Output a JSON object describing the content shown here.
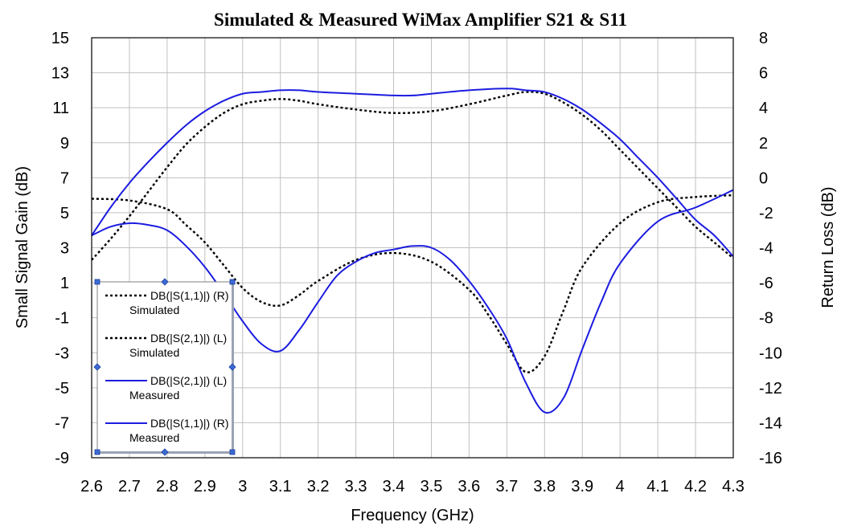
{
  "chart_data": {
    "type": "line",
    "title": "Simulated & Measured WiMax Amplifier S21 & S11",
    "xlabel": "Frequency (GHz)",
    "ylabel_left": "Small Signal Gain (dB)",
    "ylabel_right": "Return Loss (dB)",
    "xlim": [
      2.6,
      4.3
    ],
    "ylim_left": [
      -9,
      15
    ],
    "ylim_right": [
      -16,
      8
    ],
    "x_ticks": [
      "2.6",
      "2.7",
      "2.8",
      "2.9",
      "3",
      "3.1",
      "3.2",
      "3.3",
      "3.4",
      "3.5",
      "3.6",
      "3.7",
      "3.8",
      "3.9",
      "4",
      "4.1",
      "4.2",
      "4.3"
    ],
    "y_left_ticks": [
      "15",
      "13",
      "11",
      "9",
      "7",
      "5",
      "3",
      "1",
      "-1",
      "-3",
      "-5",
      "-7",
      "-9"
    ],
    "y_right_ticks": [
      "8",
      "6",
      "4",
      "2",
      "0",
      "-2",
      "-4",
      "-6",
      "-8",
      "-10",
      "-12",
      "-14",
      "-16"
    ],
    "grid": true,
    "legend_position": "bottom-left",
    "series": [
      {
        "name": "DB(|S(1,1)|) (R)",
        "sublabel": "Simulated",
        "axis": "right",
        "style": "dotted",
        "color": "#000000",
        "x": [
          2.6,
          2.7,
          2.8,
          2.85,
          2.9,
          2.95,
          3.0,
          3.05,
          3.1,
          3.15,
          3.2,
          3.3,
          3.4,
          3.5,
          3.6,
          3.65,
          3.7,
          3.75,
          3.8,
          3.85,
          3.9,
          4.0,
          4.1,
          4.2,
          4.3
        ],
        "y": [
          -1.2,
          -1.3,
          -1.8,
          -2.7,
          -3.7,
          -5.0,
          -6.3,
          -7.1,
          -7.3,
          -6.7,
          -5.9,
          -4.7,
          -4.3,
          -4.8,
          -6.4,
          -7.8,
          -9.5,
          -11.1,
          -10.2,
          -7.6,
          -5.1,
          -2.6,
          -1.4,
          -1.1,
          -1.0
        ]
      },
      {
        "name": "DB(|S(2,1)|) (L)",
        "sublabel": "Simulated",
        "axis": "left",
        "style": "dotted",
        "color": "#000000",
        "x": [
          2.6,
          2.65,
          2.7,
          2.75,
          2.8,
          2.85,
          2.9,
          2.95,
          3.0,
          3.05,
          3.1,
          3.15,
          3.2,
          3.3,
          3.4,
          3.5,
          3.6,
          3.7,
          3.75,
          3.8,
          3.85,
          3.9,
          3.95,
          4.0,
          4.05,
          4.1,
          4.15,
          4.2,
          4.25,
          4.3
        ],
        "y": [
          2.3,
          3.5,
          4.8,
          6.2,
          7.6,
          8.9,
          9.9,
          10.7,
          11.2,
          11.4,
          11.5,
          11.4,
          11.2,
          10.9,
          10.7,
          10.8,
          11.2,
          11.7,
          11.9,
          11.8,
          11.3,
          10.6,
          9.7,
          8.6,
          7.5,
          6.4,
          5.3,
          4.2,
          3.3,
          2.4
        ]
      },
      {
        "name": "DB(|S(2,1)|) (L)",
        "sublabel": "Measured",
        "axis": "left",
        "style": "solid",
        "color": "#1c1ce0",
        "x": [
          2.6,
          2.65,
          2.7,
          2.75,
          2.8,
          2.85,
          2.9,
          2.95,
          3.0,
          3.05,
          3.1,
          3.15,
          3.2,
          3.3,
          3.4,
          3.45,
          3.5,
          3.6,
          3.7,
          3.75,
          3.8,
          3.85,
          3.9,
          3.95,
          4.0,
          4.05,
          4.1,
          4.15,
          4.2,
          4.25,
          4.3
        ],
        "y": [
          3.7,
          5.3,
          6.7,
          7.9,
          9.0,
          10.0,
          10.8,
          11.4,
          11.8,
          11.9,
          12.0,
          12.0,
          11.9,
          11.8,
          11.7,
          11.7,
          11.8,
          12.0,
          12.1,
          12.0,
          11.9,
          11.5,
          10.9,
          10.1,
          9.2,
          8.1,
          7.0,
          5.8,
          4.6,
          3.7,
          2.5
        ]
      },
      {
        "name": "DB(|S(1,1)|) (R)",
        "sublabel": "Measured",
        "axis": "right",
        "style": "solid",
        "color": "#1c1ce0",
        "x": [
          2.6,
          2.65,
          2.7,
          2.75,
          2.8,
          2.85,
          2.9,
          2.95,
          3.0,
          3.05,
          3.1,
          3.15,
          3.2,
          3.25,
          3.3,
          3.35,
          3.4,
          3.45,
          3.5,
          3.55,
          3.6,
          3.65,
          3.7,
          3.75,
          3.8,
          3.85,
          3.9,
          3.95,
          4.0,
          4.1,
          4.2,
          4.3
        ],
        "y": [
          -3.3,
          -2.8,
          -2.6,
          -2.7,
          -3.0,
          -3.9,
          -5.1,
          -6.6,
          -8.2,
          -9.5,
          -9.9,
          -8.7,
          -7.1,
          -5.6,
          -4.8,
          -4.3,
          -4.1,
          -3.9,
          -4.0,
          -4.7,
          -5.9,
          -7.4,
          -9.2,
          -11.7,
          -13.4,
          -12.6,
          -9.8,
          -7.1,
          -4.9,
          -2.5,
          -1.7,
          -0.7
        ]
      }
    ]
  }
}
